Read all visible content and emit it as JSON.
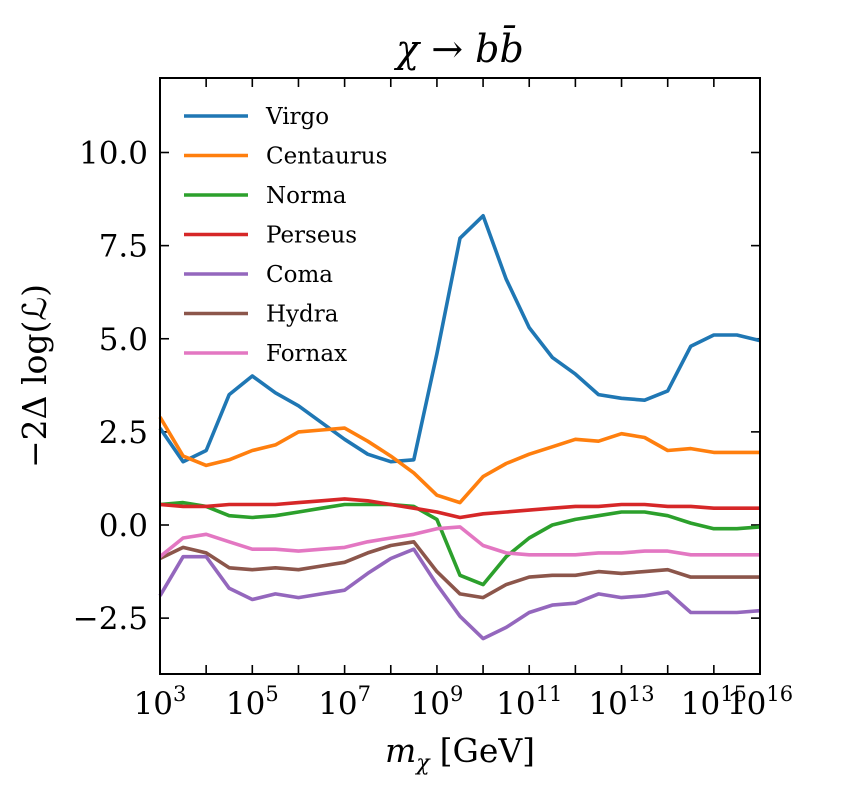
{
  "chart_data": {
    "type": "line",
    "title": "χ → bb̄",
    "xlabel": "m",
    "xlabel_subscript": "χ",
    "xlabel_unit": "[GeV]",
    "ylabel": "−2Δ log(ℒ)",
    "xscale": "log10",
    "xlim_exp": [
      3,
      16
    ],
    "ylim": [
      -4.0,
      12.0
    ],
    "x_tick_base": "10",
    "x_tick_exponents": [
      "3",
      "5",
      "7",
      "9",
      "11",
      "13",
      "15",
      "16"
    ],
    "y_ticks": [
      -2.5,
      0.0,
      2.5,
      5.0,
      7.5,
      10.0
    ],
    "y_tick_labels": [
      "−2.5",
      "0.0",
      "2.5",
      "5.0",
      "7.5",
      "10.0"
    ],
    "legend_position": "top-left",
    "x_log10": [
      3.0,
      3.5,
      4.0,
      4.5,
      5.0,
      5.5,
      6.0,
      6.5,
      7.0,
      7.5,
      8.0,
      8.5,
      9.0,
      9.5,
      10.0,
      10.5,
      11.0,
      11.5,
      12.0,
      12.5,
      13.0,
      13.5,
      14.0,
      14.5,
      15.0,
      15.5,
      16.0
    ],
    "series": [
      {
        "name": "Virgo",
        "color": "#1f77b4",
        "values": [
          2.6,
          1.7,
          2.0,
          3.5,
          4.0,
          3.55,
          3.2,
          2.75,
          2.3,
          1.9,
          1.7,
          1.75,
          4.6,
          7.7,
          8.3,
          6.6,
          5.3,
          4.5,
          4.05,
          3.5,
          3.4,
          3.35,
          3.6,
          4.8,
          5.1,
          5.1,
          4.95
        ]
      },
      {
        "name": "Centaurus",
        "color": "#ff7f0e",
        "values": [
          2.9,
          1.85,
          1.6,
          1.75,
          2.0,
          2.15,
          2.5,
          2.55,
          2.6,
          2.25,
          1.85,
          1.4,
          0.8,
          0.6,
          1.3,
          1.65,
          1.9,
          2.1,
          2.3,
          2.25,
          2.45,
          2.35,
          2.0,
          2.05,
          1.95,
          1.95,
          1.95
        ]
      },
      {
        "name": "Norma",
        "color": "#2ca02c",
        "values": [
          0.55,
          0.6,
          0.5,
          0.25,
          0.2,
          0.25,
          0.35,
          0.45,
          0.55,
          0.55,
          0.55,
          0.5,
          0.15,
          -1.35,
          -1.6,
          -0.85,
          -0.35,
          0.0,
          0.15,
          0.25,
          0.35,
          0.35,
          0.25,
          0.05,
          -0.1,
          -0.1,
          -0.05
        ]
      },
      {
        "name": "Perseus",
        "color": "#d62728",
        "values": [
          0.55,
          0.5,
          0.5,
          0.55,
          0.55,
          0.55,
          0.6,
          0.65,
          0.7,
          0.65,
          0.55,
          0.45,
          0.35,
          0.2,
          0.3,
          0.35,
          0.4,
          0.45,
          0.5,
          0.5,
          0.55,
          0.55,
          0.5,
          0.5,
          0.45,
          0.45,
          0.45
        ]
      },
      {
        "name": "Coma",
        "color": "#9467bd",
        "values": [
          -1.9,
          -0.85,
          -0.85,
          -1.7,
          -2.0,
          -1.85,
          -1.95,
          -1.85,
          -1.75,
          -1.3,
          -0.9,
          -0.65,
          -1.6,
          -2.45,
          -3.05,
          -2.75,
          -2.35,
          -2.15,
          -2.1,
          -1.85,
          -1.95,
          -1.9,
          -1.8,
          -2.35,
          -2.35,
          -2.35,
          -2.3
        ]
      },
      {
        "name": "Hydra",
        "color": "#8c564b",
        "values": [
          -0.9,
          -0.6,
          -0.75,
          -1.15,
          -1.2,
          -1.15,
          -1.2,
          -1.1,
          -1.0,
          -0.75,
          -0.55,
          -0.45,
          -1.25,
          -1.85,
          -1.95,
          -1.6,
          -1.4,
          -1.35,
          -1.35,
          -1.25,
          -1.3,
          -1.25,
          -1.2,
          -1.4,
          -1.4,
          -1.4,
          -1.4
        ]
      },
      {
        "name": "Fornax",
        "color": "#e377c2",
        "values": [
          -0.85,
          -0.35,
          -0.25,
          -0.45,
          -0.65,
          -0.65,
          -0.7,
          -0.65,
          -0.6,
          -0.45,
          -0.35,
          -0.25,
          -0.1,
          -0.05,
          -0.55,
          -0.75,
          -0.8,
          -0.8,
          -0.8,
          -0.75,
          -0.75,
          -0.7,
          -0.7,
          -0.8,
          -0.8,
          -0.8,
          -0.8
        ]
      }
    ]
  }
}
